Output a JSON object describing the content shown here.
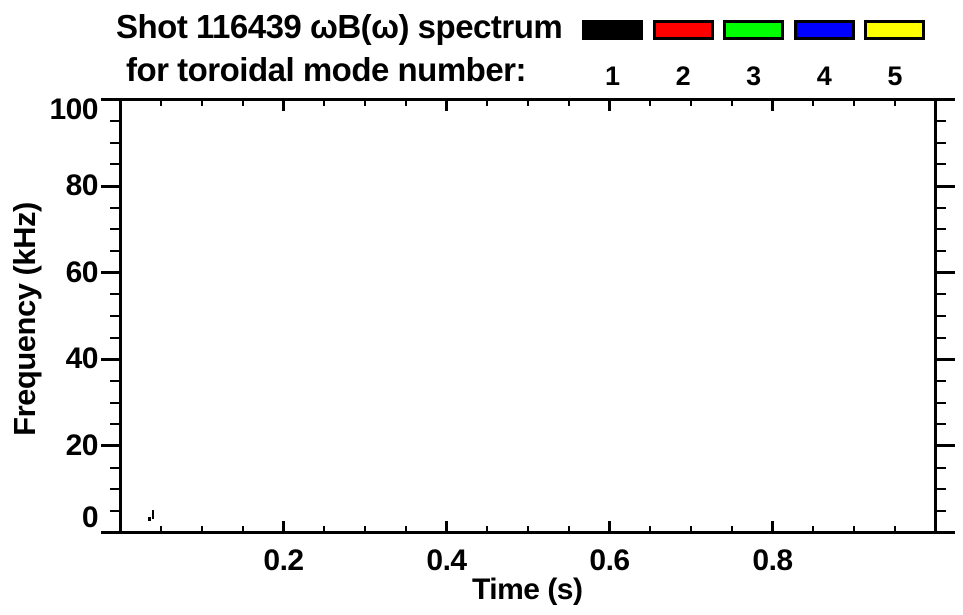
{
  "title": {
    "line1": "Shot 116439 ωB(ω) spectrum",
    "line2": "for toroidal mode number:"
  },
  "legend": {
    "entries": [
      {
        "label": "1",
        "color": "#000000"
      },
      {
        "label": "2",
        "color": "#ff0000"
      },
      {
        "label": "3",
        "color": "#00ff00"
      },
      {
        "label": "4",
        "color": "#0000ff"
      },
      {
        "label": "5",
        "color": "#ffff00"
      }
    ]
  },
  "axes": {
    "x_title": "Time (s)",
    "y_title": "Frequency (kHz)"
  },
  "chart_data": {
    "type": "scatter",
    "title": "Shot 116439 ωB(ω) spectrum for toroidal mode number: 1 2 3 4 5",
    "xlabel": "Time (s)",
    "ylabel": "Frequency (kHz)",
    "xlim": [
      0,
      1.0
    ],
    "ylim": [
      0,
      100
    ],
    "x_major_ticks": [
      0.2,
      0.4,
      0.6,
      0.8
    ],
    "x_tick_labels": [
      "0.2",
      "0.4",
      "0.6",
      "0.8"
    ],
    "x_minor_interval": 0.05,
    "y_major_ticks": [
      0,
      20,
      40,
      60,
      80,
      100
    ],
    "y_tick_labels": [
      "0",
      "20",
      "40",
      "60",
      "80",
      "100"
    ],
    "y_minor_interval": 5,
    "grid": false,
    "legend_position": "top-right-above-plot",
    "frame": true,
    "series": [
      {
        "name": "1",
        "color": "#000000",
        "points": [
          {
            "t": 0.0355,
            "f": 3.2,
            "w": 3,
            "h": 4
          },
          {
            "t": 0.0393,
            "f": 4.2,
            "w": 2,
            "h": 9
          }
        ]
      },
      {
        "name": "2",
        "color": "#ff0000",
        "points": []
      },
      {
        "name": "3",
        "color": "#00ff00",
        "points": []
      },
      {
        "name": "4",
        "color": "#0000ff",
        "points": []
      },
      {
        "name": "5",
        "color": "#ffff00",
        "points": []
      }
    ],
    "note": "Plot area is essentially empty except a tiny mode n=1 (black) trace near t≈0.04 s, f≈4 kHz"
  }
}
